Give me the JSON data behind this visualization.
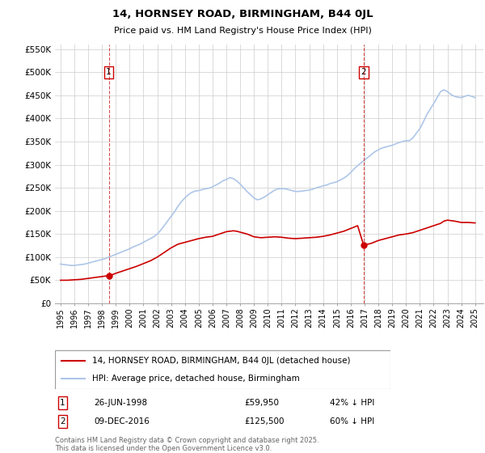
{
  "title": "14, HORNSEY ROAD, BIRMINGHAM, B44 0JL",
  "subtitle": "Price paid vs. HM Land Registry's House Price Index (HPI)",
  "hpi_color": "#aec6e8",
  "price_color": "#cc0000",
  "background_color": "#ffffff",
  "grid_color": "#cccccc",
  "ylim": [
    0,
    560000
  ],
  "yticks": [
    0,
    50000,
    100000,
    150000,
    200000,
    250000,
    300000,
    350000,
    400000,
    450000,
    500000,
    550000
  ],
  "ytick_labels": [
    "£0",
    "£50K",
    "£100K",
    "£150K",
    "£200K",
    "£250K",
    "£300K",
    "£350K",
    "£400K",
    "£450K",
    "£500K",
    "£550K"
  ],
  "xlim_start": 1994.6,
  "xlim_end": 2025.6,
  "xtick_years": [
    1995,
    1996,
    1997,
    1998,
    1999,
    2000,
    2001,
    2002,
    2003,
    2004,
    2005,
    2006,
    2007,
    2008,
    2009,
    2010,
    2011,
    2012,
    2013,
    2014,
    2015,
    2016,
    2017,
    2018,
    2019,
    2020,
    2021,
    2022,
    2023,
    2024,
    2025
  ],
  "marker1_x": 1998.49,
  "marker1_y": 59950,
  "marker1_label": "1",
  "marker1_date": "26-JUN-1998",
  "marker1_price": "£59,950",
  "marker1_hpi": "42% ↓ HPI",
  "marker2_x": 2016.94,
  "marker2_y": 125500,
  "marker2_label": "2",
  "marker2_date": "09-DEC-2016",
  "marker2_price": "£125,500",
  "marker2_hpi": "60% ↓ HPI",
  "legend_label_price": "14, HORNSEY ROAD, BIRMINGHAM, B44 0JL (detached house)",
  "legend_label_hpi": "HPI: Average price, detached house, Birmingham",
  "footnote": "Contains HM Land Registry data © Crown copyright and database right 2025.\nThis data is licensed under the Open Government Licence v3.0.",
  "hpi_data": [
    [
      1995.0,
      85000
    ],
    [
      1995.25,
      84000
    ],
    [
      1995.5,
      83000
    ],
    [
      1995.75,
      82000
    ],
    [
      1996.0,
      82000
    ],
    [
      1996.25,
      83000
    ],
    [
      1996.5,
      84000
    ],
    [
      1996.75,
      85000
    ],
    [
      1997.0,
      87000
    ],
    [
      1997.25,
      89000
    ],
    [
      1997.5,
      91000
    ],
    [
      1997.75,
      93000
    ],
    [
      1998.0,
      95000
    ],
    [
      1998.25,
      97000
    ],
    [
      1998.5,
      100000
    ],
    [
      1998.75,
      103000
    ],
    [
      1999.0,
      106000
    ],
    [
      1999.25,
      109000
    ],
    [
      1999.5,
      112000
    ],
    [
      1999.75,
      115000
    ],
    [
      2000.0,
      118000
    ],
    [
      2000.25,
      122000
    ],
    [
      2000.5,
      125000
    ],
    [
      2000.75,
      128000
    ],
    [
      2001.0,
      132000
    ],
    [
      2001.25,
      136000
    ],
    [
      2001.5,
      140000
    ],
    [
      2001.75,
      144000
    ],
    [
      2002.0,
      150000
    ],
    [
      2002.25,
      158000
    ],
    [
      2002.5,
      168000
    ],
    [
      2002.75,
      178000
    ],
    [
      2003.0,
      188000
    ],
    [
      2003.25,
      198000
    ],
    [
      2003.5,
      210000
    ],
    [
      2003.75,
      220000
    ],
    [
      2004.0,
      228000
    ],
    [
      2004.25,
      235000
    ],
    [
      2004.5,
      240000
    ],
    [
      2004.75,
      243000
    ],
    [
      2005.0,
      244000
    ],
    [
      2005.25,
      246000
    ],
    [
      2005.5,
      248000
    ],
    [
      2005.75,
      249000
    ],
    [
      2006.0,
      252000
    ],
    [
      2006.25,
      256000
    ],
    [
      2006.5,
      260000
    ],
    [
      2006.75,
      265000
    ],
    [
      2007.0,
      268000
    ],
    [
      2007.25,
      272000
    ],
    [
      2007.5,
      270000
    ],
    [
      2007.75,
      265000
    ],
    [
      2008.0,
      258000
    ],
    [
      2008.25,
      250000
    ],
    [
      2008.5,
      242000
    ],
    [
      2008.75,
      235000
    ],
    [
      2009.0,
      228000
    ],
    [
      2009.25,
      224000
    ],
    [
      2009.5,
      226000
    ],
    [
      2009.75,
      230000
    ],
    [
      2010.0,
      235000
    ],
    [
      2010.25,
      240000
    ],
    [
      2010.5,
      245000
    ],
    [
      2010.75,
      248000
    ],
    [
      2011.0,
      248000
    ],
    [
      2011.25,
      248000
    ],
    [
      2011.5,
      246000
    ],
    [
      2011.75,
      244000
    ],
    [
      2012.0,
      242000
    ],
    [
      2012.25,
      242000
    ],
    [
      2012.5,
      243000
    ],
    [
      2012.75,
      244000
    ],
    [
      2013.0,
      245000
    ],
    [
      2013.25,
      247000
    ],
    [
      2013.5,
      250000
    ],
    [
      2013.75,
      252000
    ],
    [
      2014.0,
      254000
    ],
    [
      2014.25,
      256000
    ],
    [
      2014.5,
      259000
    ],
    [
      2014.75,
      261000
    ],
    [
      2015.0,
      263000
    ],
    [
      2015.25,
      267000
    ],
    [
      2015.5,
      271000
    ],
    [
      2015.75,
      276000
    ],
    [
      2016.0,
      283000
    ],
    [
      2016.25,
      291000
    ],
    [
      2016.5,
      298000
    ],
    [
      2016.75,
      304000
    ],
    [
      2017.0,
      310000
    ],
    [
      2017.25,
      316000
    ],
    [
      2017.5,
      322000
    ],
    [
      2017.75,
      328000
    ],
    [
      2018.0,
      332000
    ],
    [
      2018.25,
      336000
    ],
    [
      2018.5,
      338000
    ],
    [
      2018.75,
      340000
    ],
    [
      2019.0,
      342000
    ],
    [
      2019.25,
      345000
    ],
    [
      2019.5,
      348000
    ],
    [
      2019.75,
      350000
    ],
    [
      2020.0,
      352000
    ],
    [
      2020.25,
      352000
    ],
    [
      2020.5,
      358000
    ],
    [
      2020.75,
      368000
    ],
    [
      2021.0,
      378000
    ],
    [
      2021.25,
      392000
    ],
    [
      2021.5,
      408000
    ],
    [
      2021.75,
      420000
    ],
    [
      2022.0,
      432000
    ],
    [
      2022.25,
      445000
    ],
    [
      2022.5,
      458000
    ],
    [
      2022.75,
      462000
    ],
    [
      2023.0,
      458000
    ],
    [
      2023.25,
      452000
    ],
    [
      2023.5,
      448000
    ],
    [
      2023.75,
      446000
    ],
    [
      2024.0,
      445000
    ],
    [
      2024.25,
      448000
    ],
    [
      2024.5,
      450000
    ],
    [
      2024.75,
      448000
    ],
    [
      2025.0,
      445000
    ]
  ],
  "price_data": [
    [
      1995.0,
      50000
    ],
    [
      1995.5,
      50000
    ],
    [
      1996.0,
      51000
    ],
    [
      1996.5,
      52000
    ],
    [
      1997.0,
      54000
    ],
    [
      1997.5,
      56000
    ],
    [
      1998.0,
      58000
    ],
    [
      1998.49,
      59950
    ],
    [
      1998.75,
      62000
    ],
    [
      1999.0,
      65000
    ],
    [
      1999.5,
      70000
    ],
    [
      2000.0,
      75000
    ],
    [
      2000.5,
      80000
    ],
    [
      2001.0,
      86000
    ],
    [
      2001.5,
      92000
    ],
    [
      2002.0,
      100000
    ],
    [
      2002.5,
      110000
    ],
    [
      2003.0,
      120000
    ],
    [
      2003.5,
      128000
    ],
    [
      2004.0,
      132000
    ],
    [
      2004.5,
      136000
    ],
    [
      2005.0,
      140000
    ],
    [
      2005.5,
      143000
    ],
    [
      2006.0,
      145000
    ],
    [
      2006.5,
      150000
    ],
    [
      2007.0,
      155000
    ],
    [
      2007.5,
      157000
    ],
    [
      2007.75,
      156000
    ],
    [
      2008.0,
      154000
    ],
    [
      2008.5,
      150000
    ],
    [
      2009.0,
      144000
    ],
    [
      2009.5,
      142000
    ],
    [
      2010.0,
      143000
    ],
    [
      2010.5,
      144000
    ],
    [
      2011.0,
      143000
    ],
    [
      2011.5,
      141000
    ],
    [
      2012.0,
      140000
    ],
    [
      2012.5,
      141000
    ],
    [
      2013.0,
      142000
    ],
    [
      2013.5,
      143000
    ],
    [
      2014.0,
      145000
    ],
    [
      2014.5,
      148000
    ],
    [
      2015.0,
      152000
    ],
    [
      2015.5,
      156000
    ],
    [
      2016.0,
      162000
    ],
    [
      2016.5,
      168000
    ],
    [
      2016.94,
      125500
    ],
    [
      2017.0,
      126000
    ],
    [
      2017.25,
      128000
    ],
    [
      2017.5,
      130000
    ],
    [
      2017.75,
      133000
    ],
    [
      2018.0,
      136000
    ],
    [
      2018.5,
      140000
    ],
    [
      2019.0,
      144000
    ],
    [
      2019.5,
      148000
    ],
    [
      2020.0,
      150000
    ],
    [
      2020.5,
      153000
    ],
    [
      2021.0,
      158000
    ],
    [
      2021.5,
      163000
    ],
    [
      2022.0,
      168000
    ],
    [
      2022.5,
      173000
    ],
    [
      2022.75,
      178000
    ],
    [
      2023.0,
      180000
    ],
    [
      2023.5,
      178000
    ],
    [
      2024.0,
      175000
    ],
    [
      2024.5,
      175000
    ],
    [
      2025.0,
      174000
    ]
  ]
}
